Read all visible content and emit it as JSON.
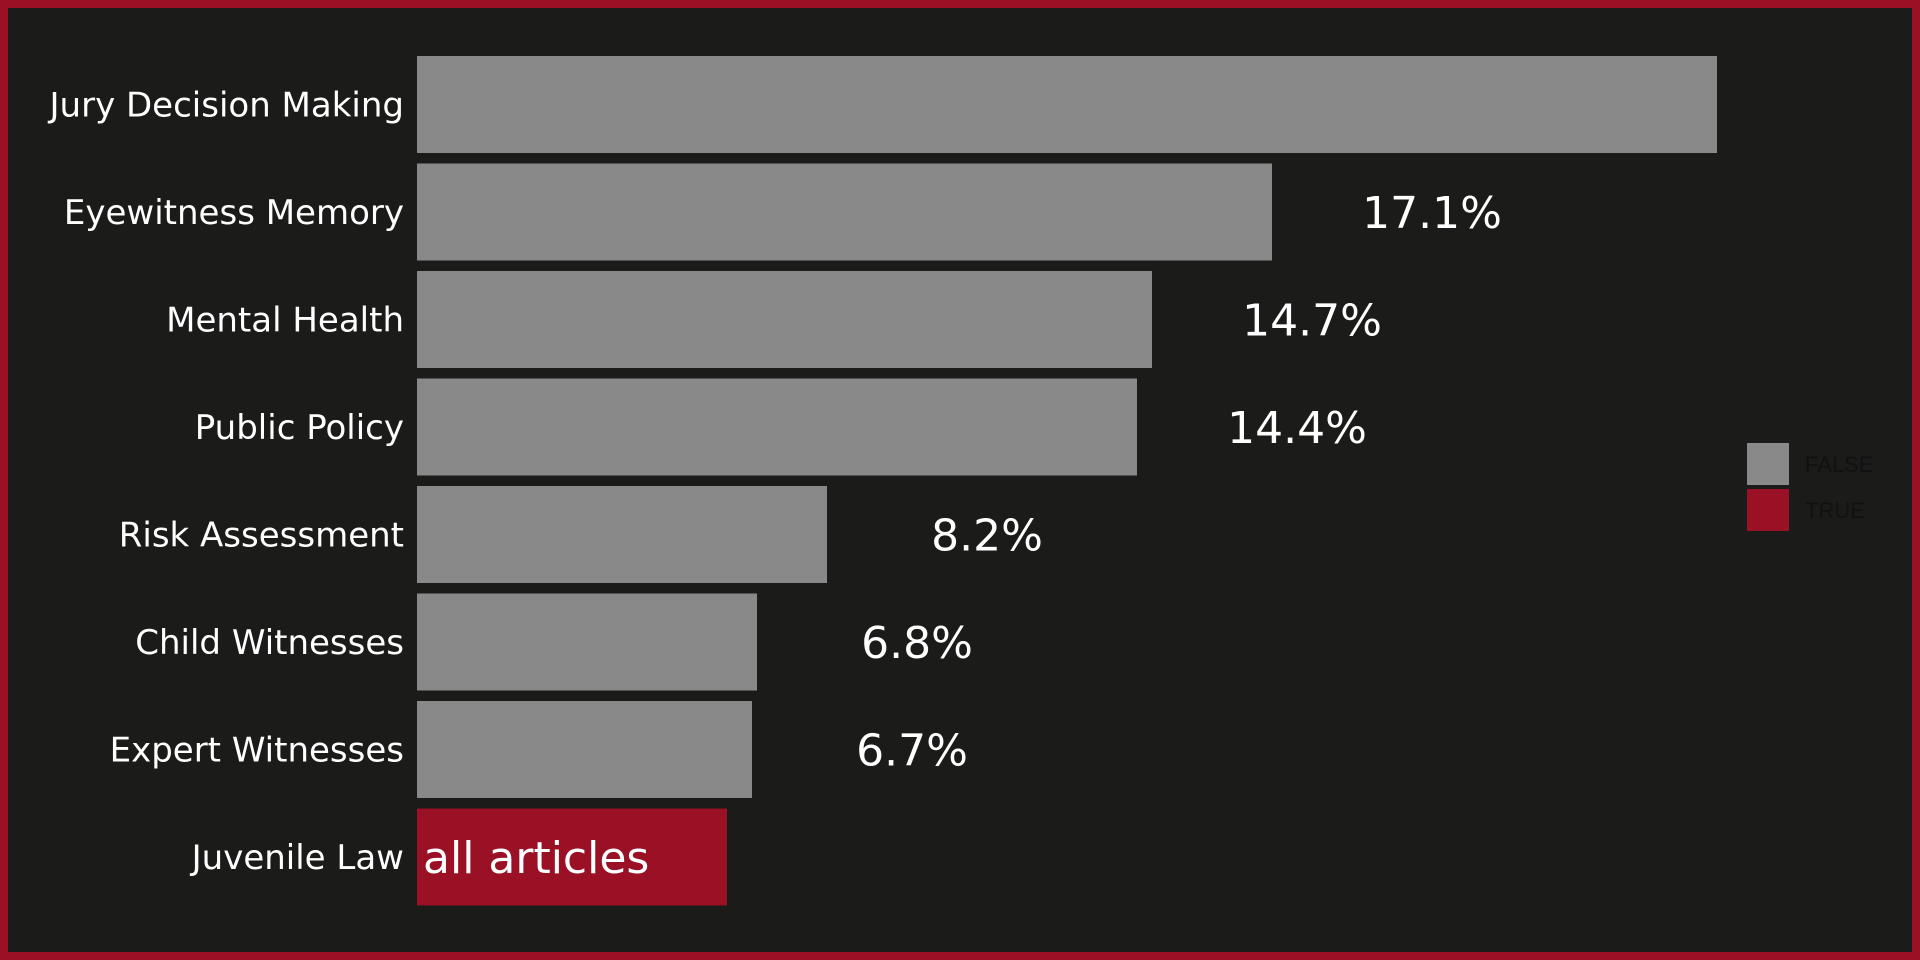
{
  "chart_data": {
    "type": "bar",
    "orientation": "horizontal",
    "categories": [
      "Jury Decision Making",
      "Eyewitness Memory",
      "Mental Health",
      "Public Policy",
      "Risk Assessment",
      "Child Witnesses",
      "Expert Witnesses",
      "Juvenile Law"
    ],
    "values": [
      26.0,
      17.1,
      14.7,
      14.4,
      8.2,
      6.8,
      6.7,
      6.2
    ],
    "highlight": [
      false,
      false,
      false,
      false,
      false,
      false,
      false,
      true
    ],
    "data_labels": [
      "",
      "17.1%",
      "14.7%",
      "14.4%",
      "8.2%",
      "6.8%",
      "6.7%",
      "all articles"
    ],
    "legend": {
      "position": "right",
      "entries": [
        {
          "label": "FALSE",
          "color": "#898989"
        },
        {
          "label": "TRUE",
          "color": "#9a1126"
        }
      ]
    },
    "xlim": [
      0,
      26.0
    ],
    "grid": false,
    "colors": {
      "background": "#1b1b1a",
      "border": "#9a1126",
      "bar_false": "#898989",
      "bar_true": "#9a1126",
      "text": "#ffffff"
    }
  }
}
